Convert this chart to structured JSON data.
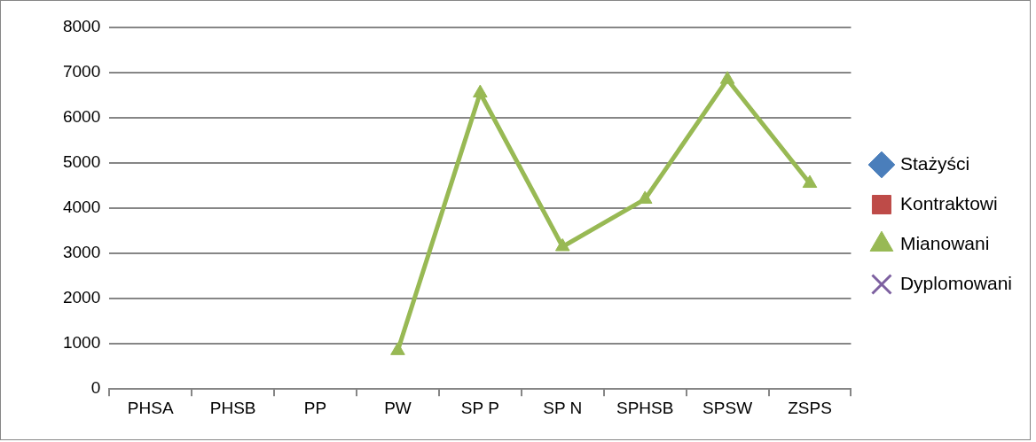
{
  "chart_data": {
    "type": "line",
    "categories": [
      "PHSA",
      "PHSB",
      "PP",
      "PW",
      "SP P",
      "SP N",
      "SPHSB",
      "SPSW",
      "ZSPS"
    ],
    "series": [
      {
        "name": "Stażyści",
        "color": "#4a7ebb",
        "marker": "diamond",
        "values": [
          null,
          null,
          null,
          null,
          null,
          null,
          null,
          null,
          null
        ]
      },
      {
        "name": "Kontraktowi",
        "color": "#be4b48",
        "marker": "square",
        "values": [
          null,
          null,
          null,
          null,
          null,
          null,
          null,
          null,
          null
        ]
      },
      {
        "name": "Mianowani",
        "color": "#98b954",
        "marker": "triangle",
        "values": [
          null,
          null,
          null,
          850,
          6550,
          3150,
          4200,
          6850,
          4550
        ]
      },
      {
        "name": "Dyplomowani",
        "color": "#7d60a0",
        "marker": "cross",
        "values": [
          null,
          null,
          null,
          null,
          null,
          null,
          null,
          null,
          null
        ]
      }
    ],
    "ylim": [
      0,
      8000
    ],
    "yticks": [
      0,
      1000,
      2000,
      3000,
      4000,
      5000,
      6000,
      7000,
      8000
    ],
    "grid": "y",
    "legend": "right"
  }
}
